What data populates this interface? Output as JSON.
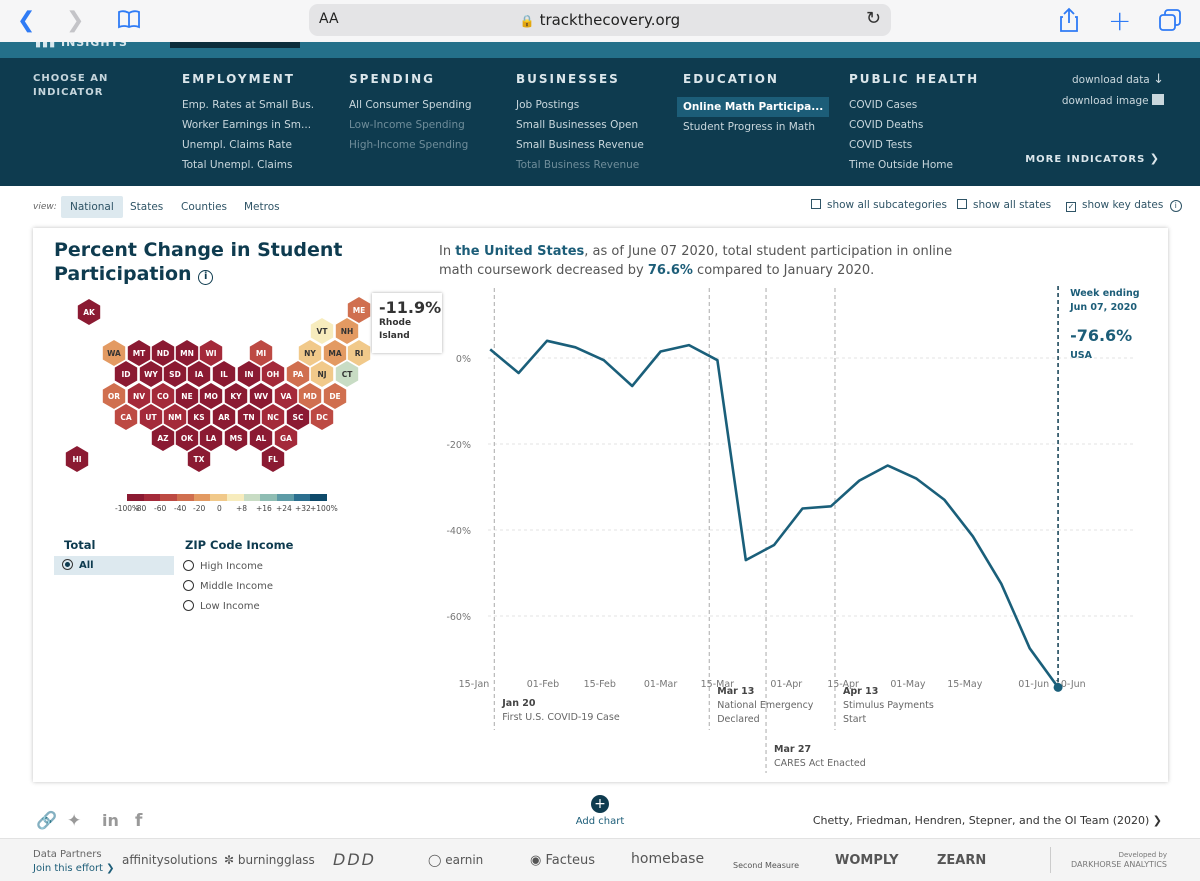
{
  "browser": {
    "url": "trackthecovery.org",
    "aa_label": "AA"
  },
  "nav": {
    "choose_label": "CHOOSE AN INDICATOR",
    "columns": [
      {
        "head": "EMPLOYMENT",
        "items": [
          "Emp. Rates at Small Bus.",
          "Worker Earnings in Sm...",
          "Unempl. Claims Rate",
          "Total Unempl. Claims"
        ]
      },
      {
        "head": "SPENDING",
        "items": [
          "All Consumer Spending",
          "Low-Income Spending",
          "High-Income Spending"
        ]
      },
      {
        "head": "BUSINESSES",
        "items": [
          "Job Postings",
          "Small Businesses Open",
          "Small Business Revenue",
          "Total Business Revenue"
        ]
      },
      {
        "head": "EDUCATION",
        "items": [
          "Online Math Participa...",
          "Student Progress in Math"
        ]
      },
      {
        "head": "PUBLIC HEALTH",
        "items": [
          "COVID Cases",
          "COVID Deaths",
          "COVID Tests",
          "Time Outside Home"
        ]
      }
    ],
    "download_data": "download data",
    "download_image": "download image",
    "more_indicators": "MORE INDICATORS"
  },
  "view": {
    "label": "view:",
    "options": [
      "National",
      "States",
      "Counties",
      "Metros"
    ],
    "selected": "National",
    "show_subcategories": "show all subcategories",
    "show_states": "show all states",
    "show_key_dates": "show key dates"
  },
  "card": {
    "title": "Percent Change in Student Participation",
    "summary_pre": "In ",
    "summary_place": "the United States",
    "summary_mid": ", as of June 07 2020, total student participation in online math coursework decreased by ",
    "summary_pct": "76.6%",
    "summary_post": " compared to January 2020."
  },
  "map": {
    "tooltip_value": "-11.9%",
    "tooltip_name": "Rhode Island",
    "legend_labels": [
      "-100%",
      "-80",
      "-60",
      "-40",
      "-20",
      "0",
      "+8",
      "+16",
      "+24",
      "+32",
      "+100%"
    ],
    "legend_colors": [
      "#8b1a32",
      "#a42a3a",
      "#bd4a43",
      "#d06f4f",
      "#e39a62",
      "#f1c98a",
      "#f7ecbd",
      "#c8dcc4",
      "#8fbdb3",
      "#5d9ba6",
      "#2b6f8f",
      "#0e4a6a"
    ],
    "states": [
      {
        "abbr": "AK",
        "color": "#8b1a32"
      },
      {
        "abbr": "ME",
        "color": "#d06f4f"
      },
      {
        "abbr": "VT",
        "color": "#f7ecbd"
      },
      {
        "abbr": "NH",
        "color": "#e39a62"
      },
      {
        "abbr": "WA",
        "color": "#e39a62"
      },
      {
        "abbr": "MT",
        "color": "#8b1a32"
      },
      {
        "abbr": "ND",
        "color": "#8b1a32"
      },
      {
        "abbr": "MN",
        "color": "#8b1a32"
      },
      {
        "abbr": "WI",
        "color": "#a42a3a"
      },
      {
        "abbr": "MI",
        "color": "#bd4a43"
      },
      {
        "abbr": "NY",
        "color": "#f1c98a"
      },
      {
        "abbr": "MA",
        "color": "#e39a62"
      },
      {
        "abbr": "RI",
        "color": "#f1c98a"
      },
      {
        "abbr": "ID",
        "color": "#8b1a32"
      },
      {
        "abbr": "WY",
        "color": "#8b1a32"
      },
      {
        "abbr": "SD",
        "color": "#8b1a32"
      },
      {
        "abbr": "IA",
        "color": "#8b1a32"
      },
      {
        "abbr": "IL",
        "color": "#8b1a32"
      },
      {
        "abbr": "IN",
        "color": "#8b1a32"
      },
      {
        "abbr": "OH",
        "color": "#a42a3a"
      },
      {
        "abbr": "PA",
        "color": "#d06f4f"
      },
      {
        "abbr": "NJ",
        "color": "#f1c98a"
      },
      {
        "abbr": "CT",
        "color": "#c8dcc4"
      },
      {
        "abbr": "OR",
        "color": "#d06f4f"
      },
      {
        "abbr": "NV",
        "color": "#a42a3a"
      },
      {
        "abbr": "CO",
        "color": "#a42a3a"
      },
      {
        "abbr": "NE",
        "color": "#8b1a32"
      },
      {
        "abbr": "MO",
        "color": "#8b1a32"
      },
      {
        "abbr": "KY",
        "color": "#8b1a32"
      },
      {
        "abbr": "WV",
        "color": "#8b1a32"
      },
      {
        "abbr": "VA",
        "color": "#a42a3a"
      },
      {
        "abbr": "MD",
        "color": "#d06f4f"
      },
      {
        "abbr": "DE",
        "color": "#d06f4f"
      },
      {
        "abbr": "CA",
        "color": "#bd4a43"
      },
      {
        "abbr": "UT",
        "color": "#a42a3a"
      },
      {
        "abbr": "NM",
        "color": "#a42a3a"
      },
      {
        "abbr": "KS",
        "color": "#8b1a32"
      },
      {
        "abbr": "AR",
        "color": "#8b1a32"
      },
      {
        "abbr": "TN",
        "color": "#8b1a32"
      },
      {
        "abbr": "NC",
        "color": "#a42a3a"
      },
      {
        "abbr": "SC",
        "color": "#8b1a32"
      },
      {
        "abbr": "DC",
        "color": "#bd4a43"
      },
      {
        "abbr": "AZ",
        "color": "#8b1a32"
      },
      {
        "abbr": "OK",
        "color": "#8b1a32"
      },
      {
        "abbr": "LA",
        "color": "#8b1a32"
      },
      {
        "abbr": "MS",
        "color": "#8b1a32"
      },
      {
        "abbr": "AL",
        "color": "#8b1a32"
      },
      {
        "abbr": "GA",
        "color": "#a42a3a"
      },
      {
        "abbr": "HI",
        "color": "#8b1a32"
      },
      {
        "abbr": "TX",
        "color": "#8b1a32"
      },
      {
        "abbr": "FL",
        "color": "#8b1a32"
      }
    ]
  },
  "filters": {
    "total_head": "Total",
    "total_all": "All",
    "zip_head": "ZIP Code Income",
    "zip_options": [
      "High Income",
      "Middle Income",
      "Low Income"
    ]
  },
  "chart_data": {
    "type": "line",
    "title": "",
    "xlabel": "",
    "ylabel": "",
    "x_ticks": [
      "15-Jan",
      "01-Feb",
      "15-Feb",
      "01-Mar",
      "15-Mar",
      "01-Apr",
      "15-Apr",
      "01-May",
      "15-May",
      "01-Jun",
      "10-Jun"
    ],
    "y_ticks": [
      "0%",
      "-20%",
      "-40%",
      "-60%"
    ],
    "ylim": [
      -78,
      6
    ],
    "grid": true,
    "series": [
      {
        "x": [
          "2020-01-19",
          "2020-01-26",
          "2020-02-02",
          "2020-02-09",
          "2020-02-16",
          "2020-02-23",
          "2020-03-01",
          "2020-03-08",
          "2020-03-15",
          "2020-03-22",
          "2020-03-29",
          "2020-04-05",
          "2020-04-12",
          "2020-04-19",
          "2020-04-26",
          "2020-05-03",
          "2020-05-10",
          "2020-05-17",
          "2020-05-24",
          "2020-05-31",
          "2020-06-07"
        ],
        "values": [
          2,
          -3.5,
          4,
          2.5,
          -0.5,
          -6.5,
          1.5,
          3,
          -0.5,
          -47,
          -43.5,
          -35,
          -34.5,
          -28.5,
          -25,
          -28,
          -33,
          -41.5,
          -52.5,
          -67.5,
          -76.6
        ]
      }
    ],
    "key_dates": [
      {
        "date": "2020-01-20",
        "label_date": "Jan 20",
        "label": "First U.S. COVID-19 Case"
      },
      {
        "date": "2020-03-13",
        "label_date": "Mar 13",
        "label": "National Emergency Declared"
      },
      {
        "date": "2020-03-27",
        "label_date": "Mar 27",
        "label": "CARES Act Enacted"
      },
      {
        "date": "2020-04-13",
        "label_date": "Apr 13",
        "label": "Stimulus Payments Start"
      }
    ],
    "endpoint": {
      "date": "2020-06-07",
      "week_label": "Week ending Jun 07, 2020",
      "value_label": "-76.6%",
      "region": "USA"
    }
  },
  "footer": {
    "add_chart": "Add chart",
    "citation": "Chetty, Friedman, Hendren, Stepner, and the OI Team (2020)",
    "data_partners": "Data Partners",
    "join": "Join this effort",
    "partners": [
      "affinitysolutions",
      "burningglass",
      "DDD",
      "earnin",
      "Facteus",
      "homebase",
      "Second Measure",
      "WOMPLY",
      "ZEARN"
    ],
    "developed_by": "Developed by",
    "developer": "DARKHORSE ANALYTICS"
  }
}
